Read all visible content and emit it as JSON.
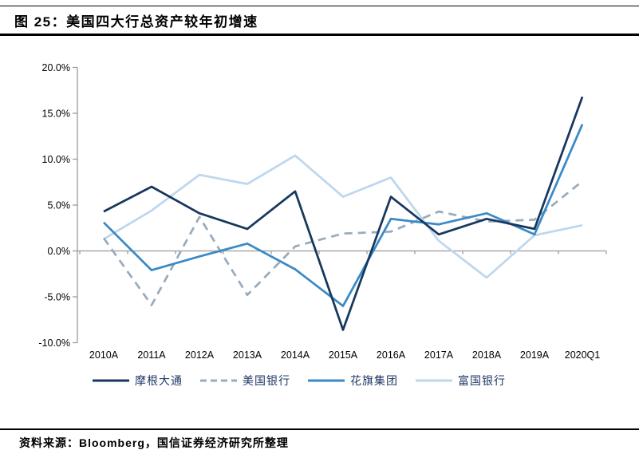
{
  "header": {
    "title": "图 25：美国四大行总资产较年初增速"
  },
  "chart_data": {
    "type": "line",
    "title": "美国四大行总资产较年初增速",
    "xlabel": "",
    "ylabel": "",
    "categories": [
      "2010A",
      "2011A",
      "2012A",
      "2013A",
      "2014A",
      "2015A",
      "2016A",
      "2017A",
      "2018A",
      "2019A",
      "2020Q1"
    ],
    "series": [
      {
        "id": "jpmorgan-chase",
        "name": "摩根大通",
        "color": "#17375e",
        "style": "solid",
        "values": [
          4.3,
          7.0,
          4.1,
          2.4,
          6.5,
          -8.6,
          5.9,
          1.8,
          3.5,
          2.4,
          16.8
        ]
      },
      {
        "id": "bank-of-america",
        "name": "美国银行",
        "color": "#99abbd",
        "style": "dashed",
        "values": [
          1.4,
          -5.9,
          3.7,
          -4.8,
          0.5,
          1.9,
          2.1,
          4.3,
          3.2,
          3.4,
          7.6
        ]
      },
      {
        "id": "citigroup",
        "name": "花旗集团",
        "color": "#3a8ac6",
        "style": "solid",
        "values": [
          3.1,
          -2.1,
          -0.6,
          0.8,
          -2.0,
          -6.0,
          3.5,
          2.9,
          4.1,
          1.8,
          13.8
        ]
      },
      {
        "id": "wells-fargo",
        "name": "富国银行",
        "color": "#bdd7ee",
        "style": "solid",
        "values": [
          1.3,
          4.4,
          8.3,
          7.3,
          10.4,
          5.9,
          8.0,
          1.1,
          -2.9,
          1.7,
          2.8
        ]
      }
    ],
    "ylim": [
      -10,
      20
    ],
    "ytick_step": 5,
    "ytick_labels": [
      "20.0%",
      "15.0%",
      "10.0%",
      "5.0%",
      "0.0%",
      "-5.0%",
      "-10.0%"
    ],
    "grid": false,
    "zero_baseline": true,
    "legend_position": "bottom",
    "axis_color": "#9a9a9a",
    "tick_label_color": "#000000"
  },
  "footer": {
    "source": "资料来源：Bloomberg，国信证券经济研究所整理"
  }
}
